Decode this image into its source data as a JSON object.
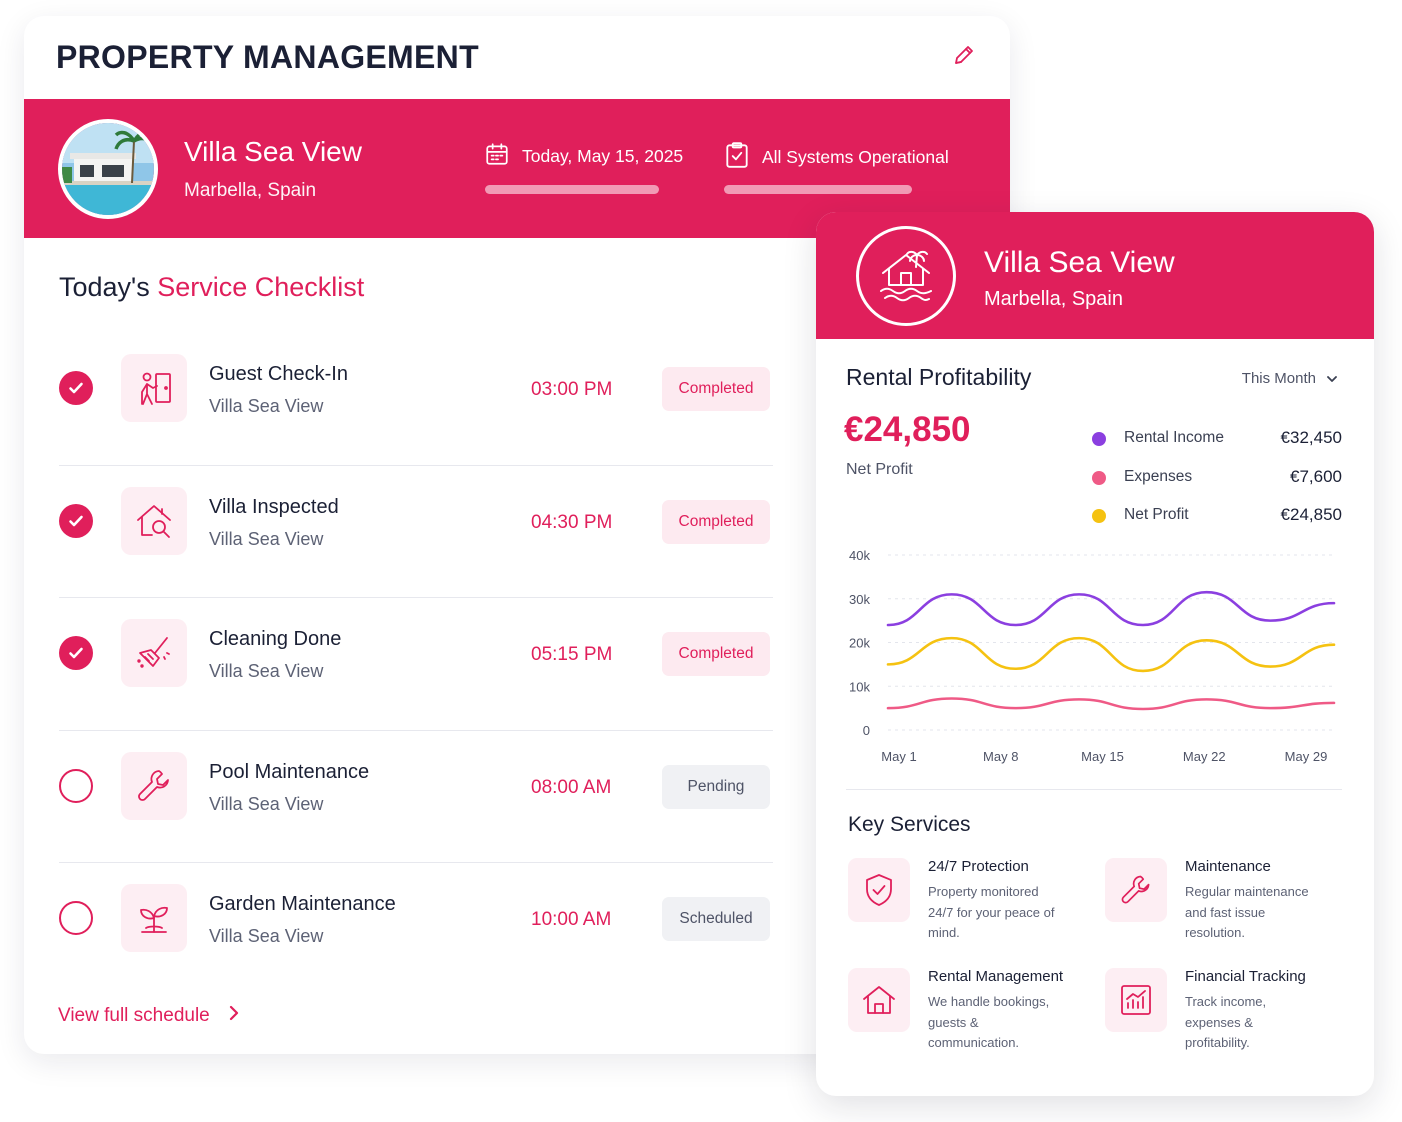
{
  "header": {
    "title": "PROPERTY MANAGEMENT"
  },
  "property": {
    "name": "Villa Sea View",
    "location": "Marbella, Spain"
  },
  "status": {
    "date": "Today, May 15, 2025",
    "systems": "All Systems Operational"
  },
  "checklist": {
    "title_prefix": "Today's",
    "title_accent": "Service Checklist",
    "tasks": [
      {
        "name": "Guest Check-In",
        "place": "Villa Sea View",
        "time": "03:00 PM",
        "status": "Completed",
        "done": true,
        "icon": "guest-checkin-icon"
      },
      {
        "name": "Villa Inspected",
        "place": "Villa Sea View",
        "time": "04:30 PM",
        "status": "Completed",
        "done": true,
        "icon": "house-inspect-icon"
      },
      {
        "name": "Cleaning Done",
        "place": "Villa Sea View",
        "time": "05:15 PM",
        "status": "Completed",
        "done": true,
        "icon": "broom-icon"
      },
      {
        "name": "Pool Maintenance",
        "place": "Villa Sea View",
        "time": "08:00 AM",
        "status": "Pending",
        "done": false,
        "icon": "wrench-icon"
      },
      {
        "name": "Garden Maintenance",
        "place": "Villa Sea View",
        "time": "10:00 AM",
        "status": "Scheduled",
        "done": false,
        "icon": "plant-icon"
      }
    ],
    "view_all": "View full schedule"
  },
  "profitability": {
    "title": "Rental Profitability",
    "period": "This Month",
    "net_value": "€24,850",
    "net_label": "Net Profit",
    "legend": [
      {
        "name": "Rental Income",
        "value": "€32,450",
        "color": "#8b3fe0"
      },
      {
        "name": "Expenses",
        "value": "€7,600",
        "color": "#ef5a86"
      },
      {
        "name": "Net Profit",
        "value": "€24,850",
        "color": "#f5c211"
      }
    ]
  },
  "chart_data": {
    "type": "line",
    "x_labels": [
      "May 1",
      "May 8",
      "May 15",
      "May 22",
      "May 29"
    ],
    "x_range": [
      1,
      29
    ],
    "y_ticks": [
      "0",
      "10k",
      "20k",
      "30k",
      "40k"
    ],
    "ylim": [
      0,
      40000
    ],
    "grid": true,
    "series": [
      {
        "name": "Rental Income",
        "color": "#8b3fe0",
        "x": [
          1,
          5,
          9,
          13,
          17,
          21,
          25,
          29
        ],
        "values": [
          24000,
          31000,
          24000,
          31000,
          24000,
          31500,
          25000,
          29000
        ]
      },
      {
        "name": "Net Profit",
        "color": "#f5c211",
        "x": [
          1,
          5,
          9,
          13,
          17,
          21,
          25,
          29
        ],
        "values": [
          15000,
          21000,
          14000,
          21000,
          13500,
          20500,
          14500,
          19500
        ]
      },
      {
        "name": "Expenses",
        "color": "#ef5a86",
        "x": [
          1,
          5,
          9,
          13,
          17,
          21,
          25,
          29
        ],
        "values": [
          5000,
          7200,
          5000,
          7000,
          4800,
          7000,
          5000,
          6200
        ]
      }
    ]
  },
  "services": {
    "title": "Key Services",
    "items": [
      {
        "name": "24/7 Protection",
        "desc": "Property monitored 24/7 for your peace of mind.",
        "icon": "shield-icon"
      },
      {
        "name": "Maintenance",
        "desc": "Regular maintenance and fast issue resolution.",
        "icon": "wrench-icon"
      },
      {
        "name": "Rental Management",
        "desc": "We handle bookings, guests & communication.",
        "icon": "home-icon"
      },
      {
        "name": "Financial Tracking",
        "desc": "Track income, expenses & profitability.",
        "icon": "chart-icon"
      }
    ]
  }
}
